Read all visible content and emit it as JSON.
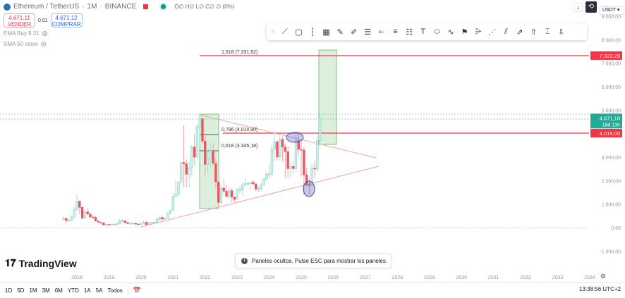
{
  "header": {
    "symbol": "Ethereum / TetherUS",
    "interval": "1M",
    "exchange": "BINANCE",
    "ohlc": "O∅ H∅ L∅ C∅ ∅ (0%)"
  },
  "trade": {
    "sell_price": "4.671,11",
    "sell_label": "VENDER",
    "spread": "0,01",
    "buy_price": "4.671,12",
    "buy_label": "COMPRAR"
  },
  "indicators": [
    {
      "label": "EMA Buy 9 21"
    },
    {
      "label": "SMA 50 close"
    }
  ],
  "toolbar": {
    "icons": [
      "trend-line-icon",
      "rectangle-icon",
      "vertical-line-icon",
      "grid-icon",
      "brush-icon",
      "highlighter-icon",
      "parallel-channel-icon",
      "horizontal-ray-icon",
      "fib-retracement-icon",
      "fib-extension-icon",
      "text-icon",
      "ellipse-icon",
      "path-icon",
      "flag-mark-icon",
      "fan-icon",
      "pitchfork-icon",
      "regression-icon",
      "arrow-icon",
      "arrow-up-icon",
      "date-range-icon",
      "arrow-down-icon"
    ],
    "glyphs": [
      "⟋",
      "▢",
      "⸽",
      "▦",
      "✎",
      "✐",
      "☰",
      "⟜",
      "≡",
      "☷",
      "T",
      "⬭",
      "∿",
      "⚑",
      "⩥",
      "⋰",
      "⫽",
      "⇗",
      "⇧",
      "⌶",
      "⇩"
    ]
  },
  "currency": "USDT",
  "price_axis": {
    "labels": [
      "9.000,00",
      "8.000,00",
      "7.000,00",
      "6.000,00",
      "5.000,00",
      "3.000,00",
      "2.000,00",
      "1.000,00",
      "0,00",
      "-1.000,00"
    ],
    "values": [
      9000,
      8000,
      7000,
      6000,
      5000,
      3000,
      2000,
      1000,
      0,
      -1000
    ],
    "tags": [
      {
        "text": "7.323,29",
        "value": 7323.29,
        "color": "#f23645"
      },
      {
        "text": "4.019,00",
        "value": 4019,
        "color": "#f23645"
      }
    ],
    "last": {
      "price": "4.671,18",
      "countdown": "18d 13h",
      "value": 4671.18,
      "color": "#22ab94"
    }
  },
  "time_axis": {
    "labels": [
      "2018",
      "2019",
      "2020",
      "2021",
      "2022",
      "2023",
      "2024",
      "2025",
      "2026",
      "2027",
      "2028",
      "2029",
      "2030",
      "2031",
      "2032",
      "2033",
      "2034"
    ]
  },
  "chart_data": {
    "type": "candlestick",
    "start": "2017-08",
    "interval": "1M",
    "closes": [
      390,
      300,
      305,
      440,
      750,
      1120,
      860,
      400,
      670,
      580,
      450,
      430,
      280,
      230,
      200,
      110,
      130,
      110,
      140,
      140,
      160,
      270,
      290,
      220,
      170,
      180,
      180,
      150,
      130,
      180,
      220,
      130,
      210,
      230,
      230,
      350,
      430,
      360,
      390,
      620,
      740,
      1310,
      1420,
      1920,
      2770,
      2710,
      2270,
      2530,
      3430,
      3000,
      4290,
      4630,
      3680,
      2690,
      2920,
      3280,
      2730,
      1940,
      1070,
      1680,
      1550,
      1330,
      1570,
      1300,
      1200,
      1590,
      1610,
      1820,
      1870,
      1870,
      1930,
      1860,
      1640,
      1670,
      1810,
      2050,
      2280,
      2280,
      3340,
      3650,
      3010,
      3760,
      3430,
      3230,
      2510,
      2600,
      2510,
      3700,
      3330,
      3300,
      2240,
      1820,
      1790,
      2530,
      2490,
      3700,
      4671
    ],
    "highs": [
      480,
      400,
      350,
      520,
      880,
      1420,
      1160,
      880,
      710,
      830,
      620,
      530,
      480,
      300,
      230,
      240,
      160,
      160,
      160,
      190,
      200,
      360,
      360,
      320,
      240,
      230,
      220,
      190,
      160,
      190,
      290,
      290,
      230,
      240,
      250,
      420,
      440,
      490,
      400,
      620,
      750,
      1480,
      2040,
      2000,
      2800,
      4370,
      2900,
      2800,
      3500,
      3980,
      4380,
      4890,
      4780,
      3880,
      3280,
      3600,
      3580,
      2970,
      1970,
      1790,
      2030,
      1800,
      1700,
      1680,
      1300,
      1690,
      1740,
      1920,
      2140,
      1930,
      1930,
      2010,
      1890,
      1750,
      1890,
      2140,
      2400,
      2720,
      3510,
      4100,
      3720,
      3980,
      3890,
      3570,
      3460,
      2830,
      2870,
      4110,
      4110,
      3740,
      3430,
      2550,
      2100,
      2740,
      2880,
      3950,
      4790
    ],
    "lows": [
      290,
      200,
      270,
      290,
      420,
      750,
      570,
      370,
      360,
      510,
      420,
      400,
      250,
      170,
      170,
      80,
      80,
      100,
      100,
      130,
      150,
      160,
      220,
      160,
      140,
      160,
      150,
      120,
      110,
      130,
      170,
      90,
      130,
      180,
      210,
      220,
      310,
      310,
      310,
      370,
      560,
      710,
      1290,
      1290,
      1870,
      1730,
      1710,
      1720,
      2150,
      2650,
      2940,
      3500,
      3580,
      2160,
      2300,
      2480,
      2670,
      1700,
      880,
      1000,
      1420,
      1270,
      1190,
      1080,
      1080,
      1190,
      1460,
      1370,
      1740,
      1760,
      1630,
      1810,
      1550,
      1530,
      1520,
      1790,
      2000,
      2100,
      2170,
      2810,
      2850,
      2860,
      2820,
      2110,
      2120,
      2150,
      2310,
      2360,
      3100,
      2160,
      1390,
      1750,
      1380,
      1790,
      2110,
      2370,
      3360
    ]
  },
  "drawings": {
    "fib_1618": "1,618 (7.331,62)",
    "fib_0786": "0,786 (4.014,90)",
    "fib_0618": "0,618 (3.345,18)",
    "fib_colors": {
      "line": "#f23645",
      "box": "#4caf50"
    }
  },
  "branding": {
    "logo": "TradingView"
  },
  "toast": {
    "text": "Paneles ocultos. Pulse ESC para mostrar los paneles."
  },
  "ranges": [
    "1D",
    "5D",
    "1M",
    "3M",
    "6M",
    "YTD",
    "1A",
    "5A",
    "Todos"
  ],
  "clock": "13:38:56 UTC+2"
}
